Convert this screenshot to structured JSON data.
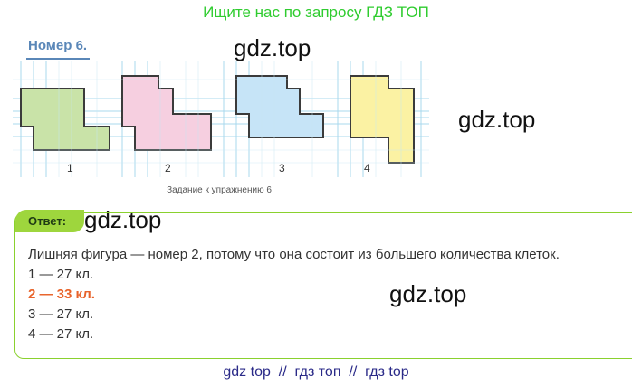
{
  "banner": "Ищите нас по запросу ГДЗ ТОП",
  "heading": "Номер 6.",
  "watermarks": [
    "gdz.top",
    "gdz.top",
    "gdz.top",
    "gdz.top"
  ],
  "figures": {
    "labels": [
      "1",
      "2",
      "3",
      "4"
    ],
    "caption": "Задание к упражнению 6",
    "colors": {
      "fig1": "#c9e3a8",
      "fig2": "#f6cfe0",
      "fig3": "#c6e4f7",
      "fig4": "#fbf2a3",
      "grid": "#a8d9ee",
      "outline": "#3b3b3b"
    }
  },
  "answer": {
    "label": "Ответ:",
    "intro": "Лишняя фигура — номер 2, потому что она состоит из большего количества клеток.",
    "lines": [
      "1 — 27 кл.",
      "2 — 33 кл.",
      "3 — 27 кл.",
      "4 — 27 кл."
    ]
  },
  "footer": "gdz top  //  гдз топ  //  гдз top"
}
